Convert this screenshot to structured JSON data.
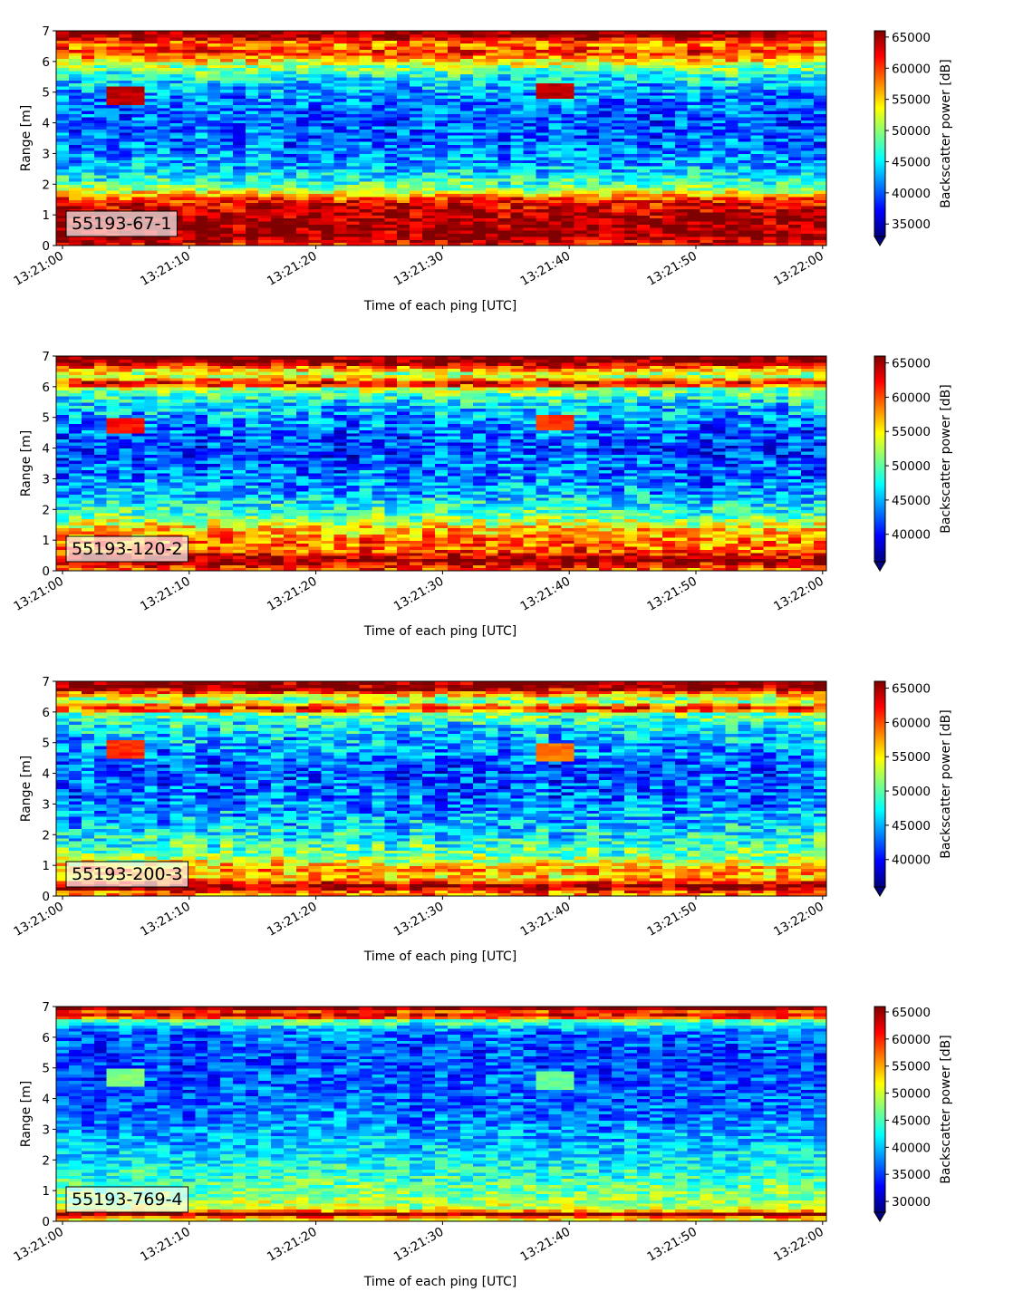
{
  "figure": {
    "x_axis_label": "Time of each ping [UTC]",
    "y_axis_label": "Range [m]",
    "colorbar_label": "Backscatter power [dB]",
    "colormap": "jet",
    "colormap_stops": [
      "#00007f",
      "#0000ff",
      "#007fff",
      "#00ffff",
      "#7fff7f",
      "#ffff00",
      "#ff7f00",
      "#ff0000",
      "#7f0000"
    ]
  },
  "chart_data": [
    {
      "type": "heatmap",
      "label": "55193-67-1",
      "xlabel": "Time of each ping [UTC]",
      "ylabel": "Range [m]",
      "colorbar_label": "Backscatter power [dB]",
      "x_ticks": [
        "13:21:00",
        "13:21:10",
        "13:21:20",
        "13:21:30",
        "13:21:40",
        "13:21:50",
        "13:22:00"
      ],
      "x_range": [
        "13:20:59.5",
        "13:22:00.3"
      ],
      "y_ticks": [
        0,
        1,
        2,
        3,
        4,
        5,
        6,
        7
      ],
      "ylim": [
        0,
        7
      ],
      "colorbar_ticks": [
        35000,
        40000,
        45000,
        50000,
        55000,
        60000,
        65000
      ],
      "color_range": [
        33000,
        66000
      ],
      "colorbar_extend": "min",
      "grid": false,
      "range_profile": [
        {
          "range": 0.1,
          "value": 62000
        },
        {
          "range": 0.3,
          "value": 66000
        },
        {
          "range": 0.7,
          "value": 65500
        },
        {
          "range": 1.1,
          "value": 64500
        },
        {
          "range": 1.5,
          "value": 61000
        },
        {
          "range": 1.9,
          "value": 49000
        },
        {
          "range": 2.5,
          "value": 43500
        },
        {
          "range": 3.2,
          "value": 41000
        },
        {
          "range": 4.0,
          "value": 40000
        },
        {
          "range": 4.8,
          "value": 41500
        },
        {
          "range": 5.4,
          "value": 44500
        },
        {
          "range": 5.9,
          "value": 51000
        },
        {
          "range": 6.3,
          "value": 61000
        },
        {
          "range": 6.6,
          "value": 57000
        },
        {
          "range": 6.85,
          "value": 66000
        }
      ],
      "anomalies": [
        {
          "time": "13:21:05",
          "range": 4.9,
          "value": 64000
        },
        {
          "time": "13:21:39",
          "range": 5.05,
          "value": 64000
        }
      ]
    },
    {
      "type": "heatmap",
      "label": "55193-120-2",
      "xlabel": "Time of each ping [UTC]",
      "ylabel": "Range [m]",
      "colorbar_label": "Backscatter power [dB]",
      "x_ticks": [
        "13:21:00",
        "13:21:10",
        "13:21:20",
        "13:21:30",
        "13:21:40",
        "13:21:50",
        "13:22:00"
      ],
      "x_range": [
        "13:20:59.5",
        "13:22:00.3"
      ],
      "y_ticks": [
        0,
        1,
        2,
        3,
        4,
        5,
        6,
        7
      ],
      "ylim": [
        0,
        7
      ],
      "colorbar_ticks": [
        40000,
        45000,
        50000,
        55000,
        60000,
        65000
      ],
      "color_range": [
        36000,
        66000
      ],
      "colorbar_extend": "min",
      "grid": false,
      "range_profile": [
        {
          "range": 0.1,
          "value": 60000
        },
        {
          "range": 0.35,
          "value": 66000
        },
        {
          "range": 0.7,
          "value": 59000
        },
        {
          "range": 1.0,
          "value": 59000
        },
        {
          "range": 1.35,
          "value": 56500
        },
        {
          "range": 1.8,
          "value": 50000
        },
        {
          "range": 2.5,
          "value": 45000
        },
        {
          "range": 3.2,
          "value": 43000
        },
        {
          "range": 4.0,
          "value": 41500
        },
        {
          "range": 4.8,
          "value": 43500
        },
        {
          "range": 5.5,
          "value": 46500
        },
        {
          "range": 5.95,
          "value": 52000
        },
        {
          "range": 6.1,
          "value": 64000
        },
        {
          "range": 6.4,
          "value": 52000
        },
        {
          "range": 6.85,
          "value": 66000
        }
      ],
      "anomalies": [
        {
          "time": "13:21:05",
          "range": 4.75,
          "value": 62000
        },
        {
          "time": "13:21:39",
          "range": 4.85,
          "value": 61000
        }
      ]
    },
    {
      "type": "heatmap",
      "label": "55193-200-3",
      "xlabel": "Time of each ping [UTC]",
      "ylabel": "Range [m]",
      "colorbar_label": "Backscatter power [dB]",
      "x_ticks": [
        "13:21:00",
        "13:21:10",
        "13:21:20",
        "13:21:30",
        "13:21:40",
        "13:21:50",
        "13:22:00"
      ],
      "x_range": [
        "13:20:59.5",
        "13:22:00.3"
      ],
      "y_ticks": [
        0,
        1,
        2,
        3,
        4,
        5,
        6,
        7
      ],
      "ylim": [
        0,
        7
      ],
      "colorbar_ticks": [
        40000,
        45000,
        50000,
        55000,
        60000,
        65000
      ],
      "color_range": [
        36000,
        66000
      ],
      "colorbar_extend": "min",
      "grid": false,
      "range_profile": [
        {
          "range": 0.1,
          "value": 58000
        },
        {
          "range": 0.3,
          "value": 66000
        },
        {
          "range": 0.6,
          "value": 56000
        },
        {
          "range": 0.9,
          "value": 58000
        },
        {
          "range": 1.3,
          "value": 51000
        },
        {
          "range": 1.8,
          "value": 48000
        },
        {
          "range": 2.5,
          "value": 45000
        },
        {
          "range": 3.2,
          "value": 43000
        },
        {
          "range": 4.0,
          "value": 42000
        },
        {
          "range": 4.8,
          "value": 44000
        },
        {
          "range": 5.5,
          "value": 46500
        },
        {
          "range": 5.95,
          "value": 51000
        },
        {
          "range": 6.1,
          "value": 63000
        },
        {
          "range": 6.4,
          "value": 50000
        },
        {
          "range": 6.8,
          "value": 66000
        }
      ],
      "anomalies": [
        {
          "time": "13:21:05",
          "range": 4.8,
          "value": 61000
        },
        {
          "time": "13:21:39",
          "range": 4.7,
          "value": 59000
        }
      ]
    },
    {
      "type": "heatmap",
      "label": "55193-769-4",
      "xlabel": "Time of each ping [UTC]",
      "ylabel": "Range [m]",
      "colorbar_label": "Backscatter power [dB]",
      "x_ticks": [
        "13:21:00",
        "13:21:10",
        "13:21:20",
        "13:21:30",
        "13:21:40",
        "13:21:50",
        "13:22:00"
      ],
      "x_range": [
        "13:20:59.5",
        "13:22:00.3"
      ],
      "y_ticks": [
        0,
        1,
        2,
        3,
        4,
        5,
        6,
        7
      ],
      "ylim": [
        0,
        7
      ],
      "colorbar_ticks": [
        30000,
        35000,
        40000,
        45000,
        50000,
        55000,
        60000,
        65000
      ],
      "color_range": [
        28000,
        66000
      ],
      "colorbar_extend": "min",
      "grid": false,
      "range_profile": [
        {
          "range": 0.1,
          "value": 52000
        },
        {
          "range": 0.25,
          "value": 66000
        },
        {
          "range": 0.4,
          "value": 50000
        },
        {
          "range": 0.8,
          "value": 47500
        },
        {
          "range": 1.5,
          "value": 44000
        },
        {
          "range": 2.5,
          "value": 40000
        },
        {
          "range": 3.5,
          "value": 37000
        },
        {
          "range": 4.5,
          "value": 36000
        },
        {
          "range": 5.5,
          "value": 35500
        },
        {
          "range": 6.2,
          "value": 37000
        },
        {
          "range": 6.55,
          "value": 46000
        },
        {
          "range": 6.7,
          "value": 64000
        },
        {
          "range": 6.85,
          "value": 58000
        },
        {
          "range": 6.95,
          "value": 66000
        }
      ],
      "anomalies": [
        {
          "time": "13:21:05",
          "range": 4.7,
          "value": 47000
        },
        {
          "time": "13:21:39",
          "range": 4.6,
          "value": 46000
        }
      ]
    }
  ]
}
